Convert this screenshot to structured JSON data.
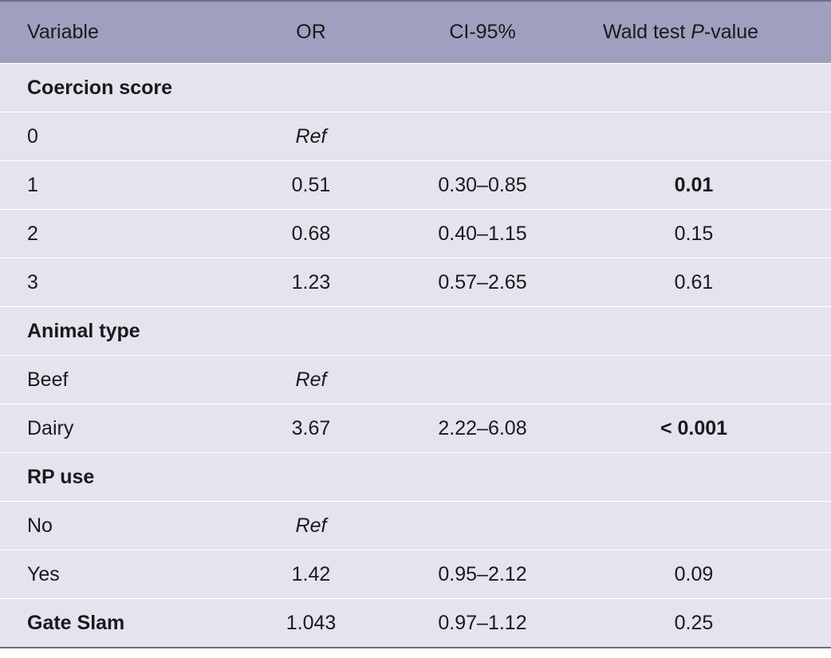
{
  "header": {
    "variable": "Variable",
    "or": "OR",
    "ci": "CI-95%",
    "pvalue_prefix": "Wald test ",
    "pvalue_italic": "P",
    "pvalue_suffix": "-value"
  },
  "rows": [
    {
      "variable": "Coercion score",
      "or": "",
      "ci": "",
      "p": ""
    },
    {
      "variable": "0",
      "or": "Ref",
      "ci": "",
      "p": ""
    },
    {
      "variable": "1",
      "or": "0.51",
      "ci": "0.30–0.85",
      "p": "0.01"
    },
    {
      "variable": "2",
      "or": "0.68",
      "ci": "0.40–1.15",
      "p": "0.15"
    },
    {
      "variable": "3",
      "or": "1.23",
      "ci": "0.57–2.65",
      "p": "0.61"
    },
    {
      "variable": "Animal type",
      "or": "",
      "ci": "",
      "p": ""
    },
    {
      "variable": "Beef",
      "or": "Ref",
      "ci": "",
      "p": ""
    },
    {
      "variable": "Dairy",
      "or": "3.67",
      "ci": "2.22–6.08",
      "p": "< 0.001"
    },
    {
      "variable": "RP use",
      "or": "",
      "ci": "",
      "p": ""
    },
    {
      "variable": "No",
      "or": "Ref",
      "ci": "",
      "p": ""
    },
    {
      "variable": "Yes",
      "or": "1.42",
      "ci": "0.95–2.12",
      "p": "0.09"
    },
    {
      "variable": "Gate Slam",
      "or": "1.043",
      "ci": "0.97–1.12",
      "p": "0.25"
    }
  ],
  "colors": {
    "header_bg": "#9f9fbf",
    "body_bg": "#e4e3ee",
    "rule": "#6e6e8a"
  }
}
